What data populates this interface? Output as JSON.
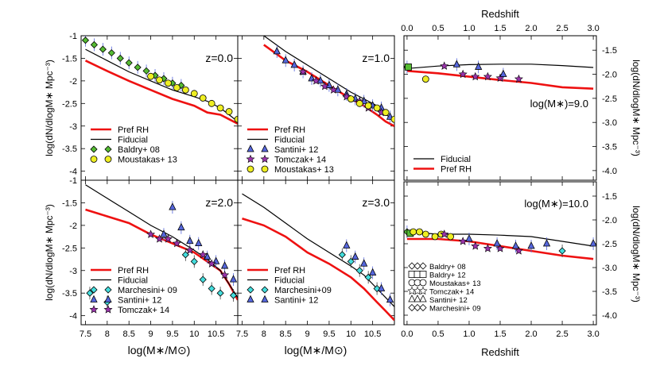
{
  "colors": {
    "pref_rh": "#ee1111",
    "fiducial": "#000000",
    "green": "#55bb33",
    "yellow": "#eeee22",
    "blue": "#5566dd",
    "purple": "#9933aa",
    "cyan": "#44dddd",
    "errbar": "#5566dd"
  },
  "chart_data": [
    {
      "id": "smf-z0",
      "type": "line",
      "label": "z=0.0",
      "xlim": [
        7.4,
        11.0
      ],
      "ylim": [
        -4.2,
        -1.0
      ],
      "ylabel": "log(dN/dlogM∗ Mpc⁻³)",
      "xlabel": "",
      "series": [
        {
          "name": "Pref RH",
          "x": [
            7.5,
            8.0,
            8.5,
            9.0,
            9.5,
            10.0,
            10.3,
            10.6,
            10.8,
            11.0
          ],
          "y": [
            -1.55,
            -1.78,
            -2.0,
            -2.2,
            -2.4,
            -2.55,
            -2.7,
            -2.75,
            -2.85,
            -2.95
          ]
        },
        {
          "name": "Fiducial",
          "x": [
            7.5,
            8.0,
            8.5,
            9.0,
            9.5,
            10.0,
            10.3,
            10.6,
            10.8,
            11.0
          ],
          "y": [
            -1.3,
            -1.55,
            -1.8,
            -2.0,
            -2.2,
            -2.35,
            -2.45,
            -2.6,
            -2.75,
            -2.9
          ]
        },
        {
          "name": "Baldry+ 08",
          "marker": "diamond",
          "x": [
            7.5,
            7.7,
            7.9,
            8.1,
            8.3,
            8.5,
            8.7,
            8.9,
            9.1,
            9.3,
            9.5,
            9.7
          ],
          "y": [
            -1.1,
            -1.2,
            -1.3,
            -1.38,
            -1.5,
            -1.6,
            -1.7,
            -1.78,
            -1.88,
            -1.95,
            -2.05,
            -2.1
          ]
        },
        {
          "name": "Moustakas+ 13",
          "marker": "circle",
          "x": [
            9.0,
            9.2,
            9.4,
            9.6,
            9.8,
            10.0,
            10.2,
            10.4,
            10.6,
            10.8,
            11.0
          ],
          "y": [
            -1.9,
            -1.98,
            -2.05,
            -2.15,
            -2.2,
            -2.28,
            -2.38,
            -2.5,
            -2.6,
            -2.68,
            -2.85
          ]
        }
      ],
      "legend": [
        "Pref RH",
        "Fiducial",
        "Baldry+ 08",
        "Moustakas+ 13"
      ]
    },
    {
      "id": "smf-z1",
      "type": "line",
      "label": "z=1.0",
      "xlim": [
        7.4,
        11.0
      ],
      "ylim": [
        -4.2,
        -1.0
      ],
      "series": [
        {
          "name": "Pref RH",
          "x": [
            8.0,
            8.5,
            9.0,
            9.5,
            10.0,
            10.3,
            10.6,
            10.8,
            11.0
          ],
          "y": [
            -1.2,
            -1.55,
            -1.8,
            -2.1,
            -2.4,
            -2.55,
            -2.75,
            -2.9,
            -3.0
          ]
        },
        {
          "name": "Fiducial",
          "x": [
            8.0,
            8.5,
            9.0,
            9.5,
            10.0,
            10.3,
            10.6,
            10.8,
            11.0
          ],
          "y": [
            -1.0,
            -1.35,
            -1.65,
            -1.95,
            -2.25,
            -2.4,
            -2.55,
            -2.75,
            -2.85
          ]
        },
        {
          "name": "Santini+ 12",
          "marker": "triangle",
          "x": [
            8.3,
            8.5,
            8.7,
            8.9,
            9.1,
            9.3,
            9.5,
            9.7,
            9.9,
            10.1,
            10.3,
            10.5,
            10.7,
            10.9
          ],
          "y": [
            -1.35,
            -1.55,
            -1.65,
            -1.8,
            -1.95,
            -2.0,
            -2.1,
            -2.2,
            -2.3,
            -2.4,
            -2.45,
            -2.55,
            -2.6,
            -2.8
          ]
        },
        {
          "name": "Tomczak+ 14",
          "marker": "star",
          "x": [
            8.9,
            9.2,
            9.4,
            9.6,
            9.9,
            10.2,
            10.4,
            10.7
          ],
          "y": [
            -1.8,
            -2.0,
            -2.12,
            -2.2,
            -2.35,
            -2.45,
            -2.6,
            -2.7
          ]
        },
        {
          "name": "Moustakas+ 13",
          "marker": "circle",
          "x": [
            10.0,
            10.2,
            10.4,
            10.6,
            10.8,
            11.0
          ],
          "y": [
            -2.4,
            -2.5,
            -2.55,
            -2.6,
            -2.7,
            -2.85
          ]
        }
      ],
      "legend": [
        "Pref RH",
        "Fiducial",
        "Santini+ 12",
        "Tomczak+ 14",
        "Moustakas+ 13"
      ]
    },
    {
      "id": "smf-z2",
      "type": "line",
      "label": "z=2.0",
      "xlim": [
        7.4,
        11.0
      ],
      "ylim": [
        -4.2,
        -1.0
      ],
      "ylabel": "log(dN/dlogM∗ Mpc⁻³)",
      "xlabel": "log(M∗/M⊙)",
      "xticks": [
        7.5,
        8,
        8.5,
        9,
        9.5,
        10,
        10.5
      ],
      "series": [
        {
          "name": "Pref RH",
          "x": [
            7.5,
            8.0,
            8.5,
            9.0,
            9.5,
            10.0,
            10.3,
            10.6,
            10.8,
            11.0
          ],
          "y": [
            -1.65,
            -1.8,
            -1.95,
            -2.2,
            -2.4,
            -2.6,
            -2.8,
            -3.0,
            -3.3,
            -3.65
          ]
        },
        {
          "name": "Fiducial",
          "x": [
            7.5,
            8.0,
            8.5,
            9.0,
            9.5,
            10.0,
            10.3,
            10.6,
            10.8,
            11.0
          ],
          "y": [
            -1.1,
            -1.4,
            -1.7,
            -2.0,
            -2.25,
            -2.55,
            -2.75,
            -3.0,
            -3.3,
            -3.6
          ]
        },
        {
          "name": "Marchesini+ 09",
          "marker": "diamond",
          "x": [
            7.6,
            8.0,
            9.8,
            10.0,
            10.2,
            10.4,
            10.6,
            10.9
          ],
          "y": [
            -3.5,
            -3.7,
            -2.65,
            -2.8,
            -3.2,
            -3.4,
            -3.5,
            -3.55
          ]
        },
        {
          "name": "Santini+ 12",
          "marker": "triangle",
          "x": [
            9.3,
            9.5,
            9.7,
            9.9,
            10.1,
            10.3,
            10.5,
            10.7,
            10.9
          ],
          "y": [
            -2.2,
            -1.6,
            -2.05,
            -2.35,
            -2.4,
            -2.7,
            -2.8,
            -2.9,
            -3.2
          ]
        },
        {
          "name": "Tomczak+ 14",
          "marker": "star",
          "x": [
            9.0,
            9.2,
            9.4,
            9.6,
            9.9,
            10.2,
            10.4,
            10.7
          ],
          "y": [
            -2.2,
            -2.3,
            -2.3,
            -2.4,
            -2.55,
            -2.65,
            -2.85,
            -3.1
          ]
        }
      ],
      "legend": [
        "Pref RH",
        "Fiducial",
        "Marchesini+ 09",
        "Santini+ 12",
        "Tomczak+ 14"
      ]
    },
    {
      "id": "smf-z3",
      "type": "line",
      "label": "z=3.0",
      "xlim": [
        7.4,
        11.0
      ],
      "ylim": [
        -4.2,
        -1.0
      ],
      "xlabel": "log(M∗/M⊙)",
      "xticks": [
        7.5,
        8,
        8.5,
        9,
        9.5,
        10,
        10.5
      ],
      "series": [
        {
          "name": "Pref RH",
          "x": [
            7.5,
            8.0,
            8.5,
            9.0,
            9.5,
            10.0,
            10.3,
            10.6,
            10.8,
            11.0
          ],
          "y": [
            -1.85,
            -2.0,
            -2.25,
            -2.6,
            -2.85,
            -3.15,
            -3.4,
            -3.7,
            -3.9,
            -4.1
          ]
        },
        {
          "name": "Fiducial",
          "x": [
            7.5,
            8.0,
            8.5,
            9.0,
            9.5,
            10.0,
            10.3,
            10.6,
            10.8,
            11.0
          ],
          "y": [
            -1.3,
            -1.6,
            -1.95,
            -2.3,
            -2.6,
            -2.9,
            -3.1,
            -3.4,
            -3.6,
            -3.8
          ]
        },
        {
          "name": "Marchesini+09",
          "marker": "diamond",
          "x": [
            9.8,
            10.0,
            10.2,
            10.4,
            10.6
          ],
          "y": [
            -2.65,
            -2.8,
            -3.0,
            -3.15,
            -3.4
          ]
        },
        {
          "name": "Santini+ 12",
          "marker": "triangle",
          "x": [
            9.9,
            10.1,
            10.3,
            10.5,
            10.7,
            10.9
          ],
          "y": [
            -2.45,
            -2.7,
            -2.85,
            -3.05,
            -3.4,
            -3.65
          ]
        }
      ],
      "legend": [
        "Pref RH",
        "Fiducial",
        "Marchesini+09",
        "Santini+ 12"
      ]
    },
    {
      "id": "evo-m9",
      "type": "line",
      "label": "log(M∗)=9.0",
      "xlabel": "Redshift",
      "xlim": [
        -0.05,
        3.05
      ],
      "ylim": [
        -4.2,
        -1.2
      ],
      "ylabel": "log(dN/dlogM∗ Mpc⁻³)",
      "xticks": [
        0.0,
        0.5,
        1.0,
        1.5,
        2.0,
        2.5,
        3.0
      ],
      "series": [
        {
          "name": "Fiducial",
          "x": [
            0,
            0.5,
            1.0,
            1.5,
            2.0,
            2.5,
            3.0
          ],
          "y": [
            -1.88,
            -1.83,
            -1.8,
            -1.79,
            -1.79,
            -1.82,
            -1.86
          ]
        },
        {
          "name": "Pref RH",
          "x": [
            0,
            0.5,
            1.0,
            1.5,
            2.0,
            2.5,
            3.0
          ],
          "y": [
            -1.93,
            -1.98,
            -2.05,
            -2.12,
            -2.18,
            -2.27,
            -2.3
          ]
        },
        {
          "name": "Baldry+ 08",
          "marker": "diamond",
          "x": [
            0.0
          ],
          "y": [
            -1.85
          ]
        },
        {
          "name": "Baldry+ 12",
          "marker": "square",
          "x": [
            0.02
          ],
          "y": [
            -1.85
          ]
        },
        {
          "name": "Moustakas+ 13",
          "marker": "circle",
          "x": [
            0.3
          ],
          "y": [
            -2.1
          ]
        },
        {
          "name": "Tomczak+ 14",
          "marker": "star",
          "x": [
            0.6,
            0.9,
            1.1,
            1.3,
            1.5,
            1.8
          ],
          "y": [
            -1.83,
            -2.0,
            -2.05,
            -2.05,
            -2.08,
            -2.1
          ]
        },
        {
          "name": "Santini+ 12",
          "marker": "triangle",
          "x": [
            0.8,
            1.15,
            1.55
          ],
          "y": [
            -1.8,
            -1.85,
            -2.0
          ]
        }
      ],
      "legend": [
        "Fiducial",
        "Pref RH"
      ]
    },
    {
      "id": "evo-m10",
      "type": "line",
      "label": "log(M∗)=10.0",
      "xlabel": "Redshift",
      "xlim": [
        -0.05,
        3.05
      ],
      "ylim": [
        -4.2,
        -1.2
      ],
      "ylabel": "log(dN/dlogM∗ Mpc⁻³)",
      "xticks": [
        0.0,
        0.5,
        1.0,
        1.5,
        2.0,
        2.5,
        3.0
      ],
      "series": [
        {
          "name": "Fiducial",
          "x": [
            0,
            0.5,
            1.0,
            1.5,
            2.0,
            2.5,
            3.0
          ],
          "y": [
            -2.25,
            -2.3,
            -2.3,
            -2.32,
            -2.35,
            -2.45,
            -2.55
          ]
        },
        {
          "name": "Pref RH",
          "x": [
            0,
            0.5,
            1.0,
            1.5,
            2.0,
            2.5,
            3.0
          ],
          "y": [
            -2.4,
            -2.4,
            -2.45,
            -2.55,
            -2.65,
            -2.75,
            -2.82
          ]
        },
        {
          "name": "Baldry+ 08",
          "marker": "diamond",
          "x": [
            0.0
          ],
          "y": [
            -2.25
          ]
        },
        {
          "name": "Baldry+ 12",
          "marker": "square",
          "x": [
            0.05
          ],
          "y": [
            -2.28
          ]
        },
        {
          "name": "Moustakas+ 13",
          "marker": "circle",
          "x": [
            0.1,
            0.2,
            0.3,
            0.45,
            0.55,
            0.7
          ],
          "y": [
            -2.25,
            -2.25,
            -2.3,
            -2.35,
            -2.3,
            -2.35
          ]
        },
        {
          "name": "Tomczak+ 14",
          "marker": "star",
          "x": [
            0.6,
            0.9,
            1.1,
            1.3,
            1.5,
            1.8
          ],
          "y": [
            -2.3,
            -2.45,
            -2.55,
            -2.6,
            -2.6,
            -2.65
          ]
        },
        {
          "name": "Santini+ 12",
          "marker": "triangle",
          "x": [
            1.0,
            1.45,
            1.75,
            2.0,
            2.25,
            3.0
          ],
          "y": [
            -2.4,
            -2.5,
            -2.55,
            -2.55,
            -2.5,
            -2.5
          ]
        },
        {
          "name": "Marchesini+ 09",
          "marker": "diamond",
          "x": [
            2.5
          ],
          "y": [
            -2.65
          ]
        }
      ],
      "legend": [
        "Baldry+ 08",
        "Baldry+ 12",
        "Moustakas+ 13",
        "Tomczak+ 14",
        "Santini+ 12",
        "Marchesini+ 09"
      ]
    }
  ],
  "labels": {
    "redshift_top": "Redshift",
    "redshift_bottom": "Redshift",
    "xlabel_left": "log(M∗/M⊙)",
    "xlabel_mid": "log(M∗/M⊙)",
    "ylabel_top": "log(dN/dlogM∗ Mpc⁻³)",
    "ylabel_bot": "log(dN/dlogM∗ Mpc⁻³)",
    "ylabel_right_top": "log(dN/dlogM∗ Mpc⁻³)",
    "ylabel_right_bot": "log(dN/dlogM∗ Mpc⁻³)"
  }
}
